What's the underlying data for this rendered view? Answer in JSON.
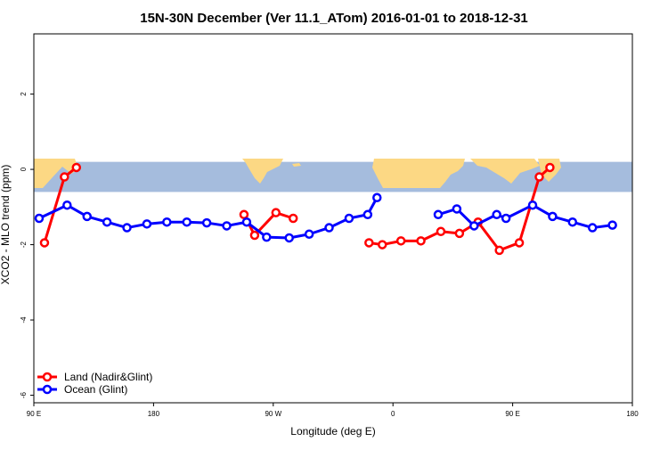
{
  "chart_data": {
    "type": "line",
    "title": "15N-30N December (Ver 11.1_ATom)   2016-01-01 to 2018-12-31",
    "xlabel": "Longitude (deg E)",
    "ylabel": "XCO2 - MLO trend (ppm)",
    "xlim": [
      90,
      540
    ],
    "ylim": [
      -6.2,
      3.6
    ],
    "x_ticks": [
      {
        "value": 90,
        "label": "90 E"
      },
      {
        "value": 180,
        "label": "180"
      },
      {
        "value": 270,
        "label": "90 W"
      },
      {
        "value": 360,
        "label": "0"
      },
      {
        "value": 450,
        "label": "90 E"
      },
      {
        "value": 540,
        "label": "180"
      }
    ],
    "y_ticks": [
      {
        "value": -6,
        "label": "-6"
      },
      {
        "value": -4,
        "label": "-4"
      },
      {
        "value": -2,
        "label": "-2"
      },
      {
        "value": 0,
        "label": "0"
      },
      {
        "value": 2,
        "label": "2"
      }
    ],
    "map_band": {
      "ymin": -0.6,
      "ymax": 0.2
    },
    "legend_position": "bottom-left",
    "series": [
      {
        "name": "Land (Nadir&Glint)",
        "color": "#ff0000",
        "segments": [
          [
            [
              98,
              -1.95
            ],
            [
              113,
              -0.2
            ],
            [
              122,
              0.05
            ]
          ],
          [
            [
              248,
              -1.2
            ],
            [
              256,
              -1.75
            ],
            [
              272,
              -1.15
            ],
            [
              285,
              -1.3
            ]
          ],
          [
            [
              342,
              -1.95
            ],
            [
              352,
              -2.0
            ],
            [
              366,
              -1.9
            ],
            [
              381,
              -1.9
            ],
            [
              396,
              -1.65
            ],
            [
              410,
              -1.7
            ],
            [
              424,
              -1.4
            ],
            [
              440,
              -2.15
            ],
            [
              455,
              -1.95
            ],
            [
              470,
              -0.2
            ],
            [
              478,
              0.05
            ]
          ]
        ]
      },
      {
        "name": "Ocean (Glint)",
        "color": "#0000ff",
        "segments": [
          [
            [
              94,
              -1.3
            ],
            [
              115,
              -0.95
            ],
            [
              130,
              -1.25
            ],
            [
              145,
              -1.4
            ],
            [
              160,
              -1.55
            ],
            [
              175,
              -1.45
            ],
            [
              190,
              -1.4
            ],
            [
              205,
              -1.4
            ],
            [
              220,
              -1.42
            ],
            [
              235,
              -1.5
            ],
            [
              250,
              -1.4
            ],
            [
              265,
              -1.8
            ],
            [
              282,
              -1.82
            ],
            [
              297,
              -1.72
            ],
            [
              312,
              -1.55
            ],
            [
              327,
              -1.3
            ],
            [
              341,
              -1.2
            ],
            [
              348,
              -0.75
            ]
          ],
          [
            [
              394,
              -1.2
            ],
            [
              408,
              -1.05
            ],
            [
              421,
              -1.5
            ],
            [
              438,
              -1.2
            ],
            [
              445,
              -1.3
            ],
            [
              465,
              -0.95
            ],
            [
              480,
              -1.25
            ],
            [
              495,
              -1.4
            ],
            [
              510,
              -1.55
            ],
            [
              525,
              -1.48
            ]
          ]
        ]
      }
    ]
  }
}
